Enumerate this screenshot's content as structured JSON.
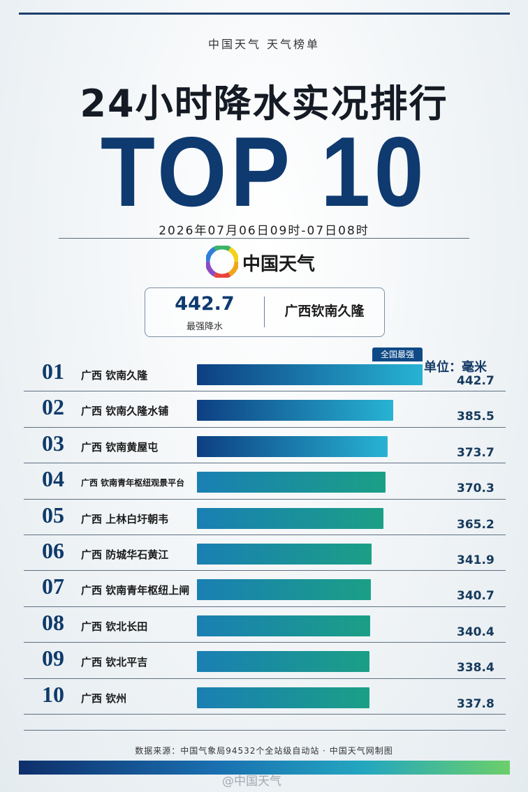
{
  "header": {
    "kicker": "中国天气  天气榜单",
    "title": "24小时降水实况排行",
    "big": "TOP 10",
    "date": "2026年07月06日09时-07日08时",
    "logo_text": "中国天气"
  },
  "summary": {
    "value": "442.7",
    "label": "最强降水",
    "place": "广西钦南久隆"
  },
  "chart_meta": {
    "unit_label": "单位：毫米",
    "badge": "全国最强"
  },
  "chart_data": {
    "type": "bar",
    "orientation": "horizontal",
    "unit": "毫米",
    "categories": [
      "广西 钦南久隆",
      "广西 钦南久隆水铺",
      "广西 钦南黄屋屯",
      "广西 钦南青年枢纽观景平台",
      "广西 上林白圩朝韦",
      "广西 防城华石黄江",
      "广西 钦南青年枢纽上闸",
      "广西 钦北长田",
      "广西 钦北平吉",
      "广西 钦州"
    ],
    "ranks": [
      "01",
      "02",
      "03",
      "04",
      "05",
      "06",
      "07",
      "08",
      "09",
      "10"
    ],
    "values": [
      442.7,
      385.5,
      373.7,
      370.3,
      365.2,
      341.9,
      340.7,
      340.4,
      338.4,
      337.8
    ],
    "value_labels": [
      "442.7",
      "385.5",
      "373.7",
      "370.3",
      "365.2",
      "341.9",
      "340.7",
      "340.4",
      "338.4",
      "337.8"
    ],
    "colors": {
      "top3_start": "#0d3f82",
      "top3_end": "#27b3d3",
      "rest_start": "#1a7fb3",
      "rest_end": "#1b9f86"
    }
  },
  "footer": {
    "source": "数据来源：中国气象局94532个全站级自动站  ·  中国天气网制图",
    "watermark": "@中国天气"
  }
}
